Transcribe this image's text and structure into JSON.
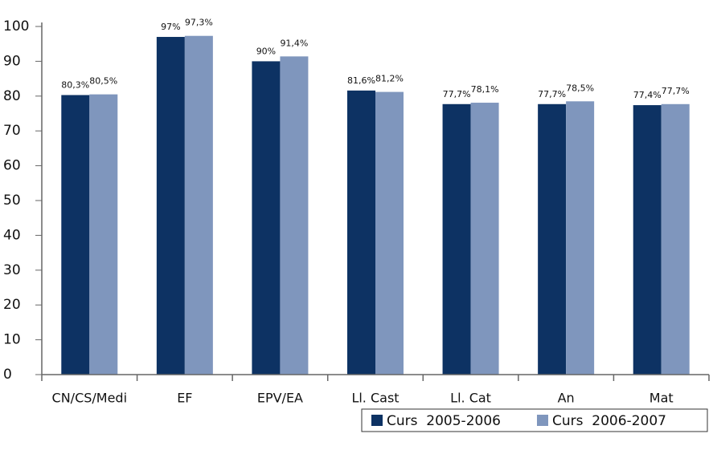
{
  "chart_data": {
    "type": "bar",
    "categories": [
      "CN/CS/Medi",
      "EF",
      "EPV/EA",
      "Ll. Cast",
      "Ll. Cat",
      "An",
      "Mat"
    ],
    "series": [
      {
        "name": "Curs  2005-2006",
        "color": "#0d3263",
        "values": [
          80.3,
          97,
          90,
          81.6,
          77.7,
          77.7,
          77.4
        ],
        "value_labels": [
          "80,3%",
          "97%",
          "90%",
          "81,6%",
          "77,7%",
          "77,7%",
          "77,4%"
        ]
      },
      {
        "name": "Curs  2006-2007",
        "color": "#7f96bd",
        "values": [
          80.5,
          97.3,
          91.4,
          81.2,
          78.1,
          78.5,
          77.7
        ],
        "value_labels": [
          "80,5%",
          "97,3%",
          "91,4%",
          "81,2%",
          "78,1%",
          "78,5%",
          "77,7%"
        ]
      }
    ],
    "ylim": [
      0,
      100
    ],
    "yticks": [
      0,
      10,
      20,
      30,
      40,
      50,
      60,
      70,
      80,
      90,
      100
    ],
    "grid": false,
    "legend": "bottom-right"
  }
}
